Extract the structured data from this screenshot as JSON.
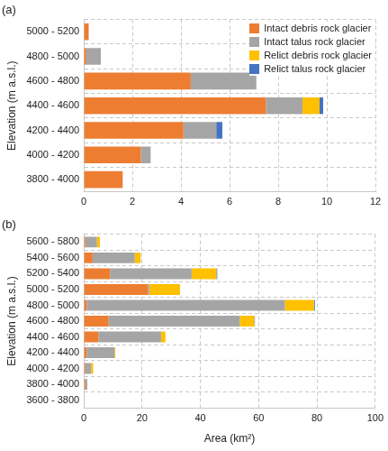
{
  "chart_data": [
    {
      "type": "bar",
      "title": "(a)",
      "orientation": "horizontal",
      "stacked": true,
      "grid": true,
      "legend": "top-right",
      "y_label": "Elevation (m a.s.l.)",
      "categories": [
        "5000 - 5200",
        "4800 - 5000",
        "4600 - 4800",
        "4400 - 4600",
        "4200 - 4400",
        "4000 - 4200",
        "3800 - 4000"
      ],
      "series": [
        {
          "name": "Intact debris rock glacier",
          "color": "#ed7d31",
          "values": [
            0.2,
            0.1,
            4.4,
            7.5,
            4.1,
            2.35,
            1.6
          ]
        },
        {
          "name": "Intact talus rock glacier",
          "color": "#a5a5a5",
          "values": [
            0,
            0.6,
            2.7,
            1.5,
            1.35,
            0.4,
            0
          ]
        },
        {
          "name": "Relict debris rock glacier",
          "color": "#ffc000",
          "values": [
            0,
            0,
            0,
            0.7,
            0,
            0,
            0
          ]
        },
        {
          "name": "Relict talus rock glacier",
          "color": "#4472c4",
          "values": [
            0,
            0,
            0,
            0.15,
            0.25,
            0,
            0
          ]
        }
      ],
      "xlim": [
        0,
        12
      ],
      "xticks": [
        0,
        2,
        4,
        6,
        8,
        10,
        12
      ]
    },
    {
      "type": "bar",
      "title": "(b)",
      "orientation": "horizontal",
      "stacked": true,
      "grid": true,
      "y_label": "Elevation (m a.s.l.)",
      "x_label": "Area (km²)",
      "categories": [
        "5600 - 5800",
        "5400 - 5600",
        "5200 - 5400",
        "5000 - 5200",
        "4800 - 5000",
        "4600 - 4800",
        "4400 - 4600",
        "4200 - 4400",
        "4000 - 4200",
        "3800 - 4000",
        "3600 - 3800"
      ],
      "series": [
        {
          "name": "Intact debris rock glacier",
          "color": "#ed7d31",
          "values": [
            0.5,
            3,
            9,
            22,
            1,
            8.5,
            5,
            1,
            0.5,
            0.5,
            0
          ]
        },
        {
          "name": "Intact talus rock glacier",
          "color": "#a5a5a5",
          "values": [
            4,
            14.5,
            28,
            0.5,
            68,
            45,
            21.5,
            9.5,
            2,
            0.7,
            0
          ]
        },
        {
          "name": "Relict debris rock glacier",
          "color": "#ffc000",
          "values": [
            1,
            2,
            8.5,
            10.5,
            10,
            5,
            1.5,
            0.3,
            0.7,
            0,
            0
          ]
        },
        {
          "name": "Relict talus rock glacier",
          "color": "#4472c4",
          "values": [
            0,
            0,
            0.3,
            0,
            0.3,
            0.2,
            0,
            0,
            0,
            0,
            0
          ]
        }
      ],
      "xlim": [
        0,
        100
      ],
      "xticks": [
        0,
        20,
        40,
        60,
        80,
        100
      ]
    }
  ]
}
